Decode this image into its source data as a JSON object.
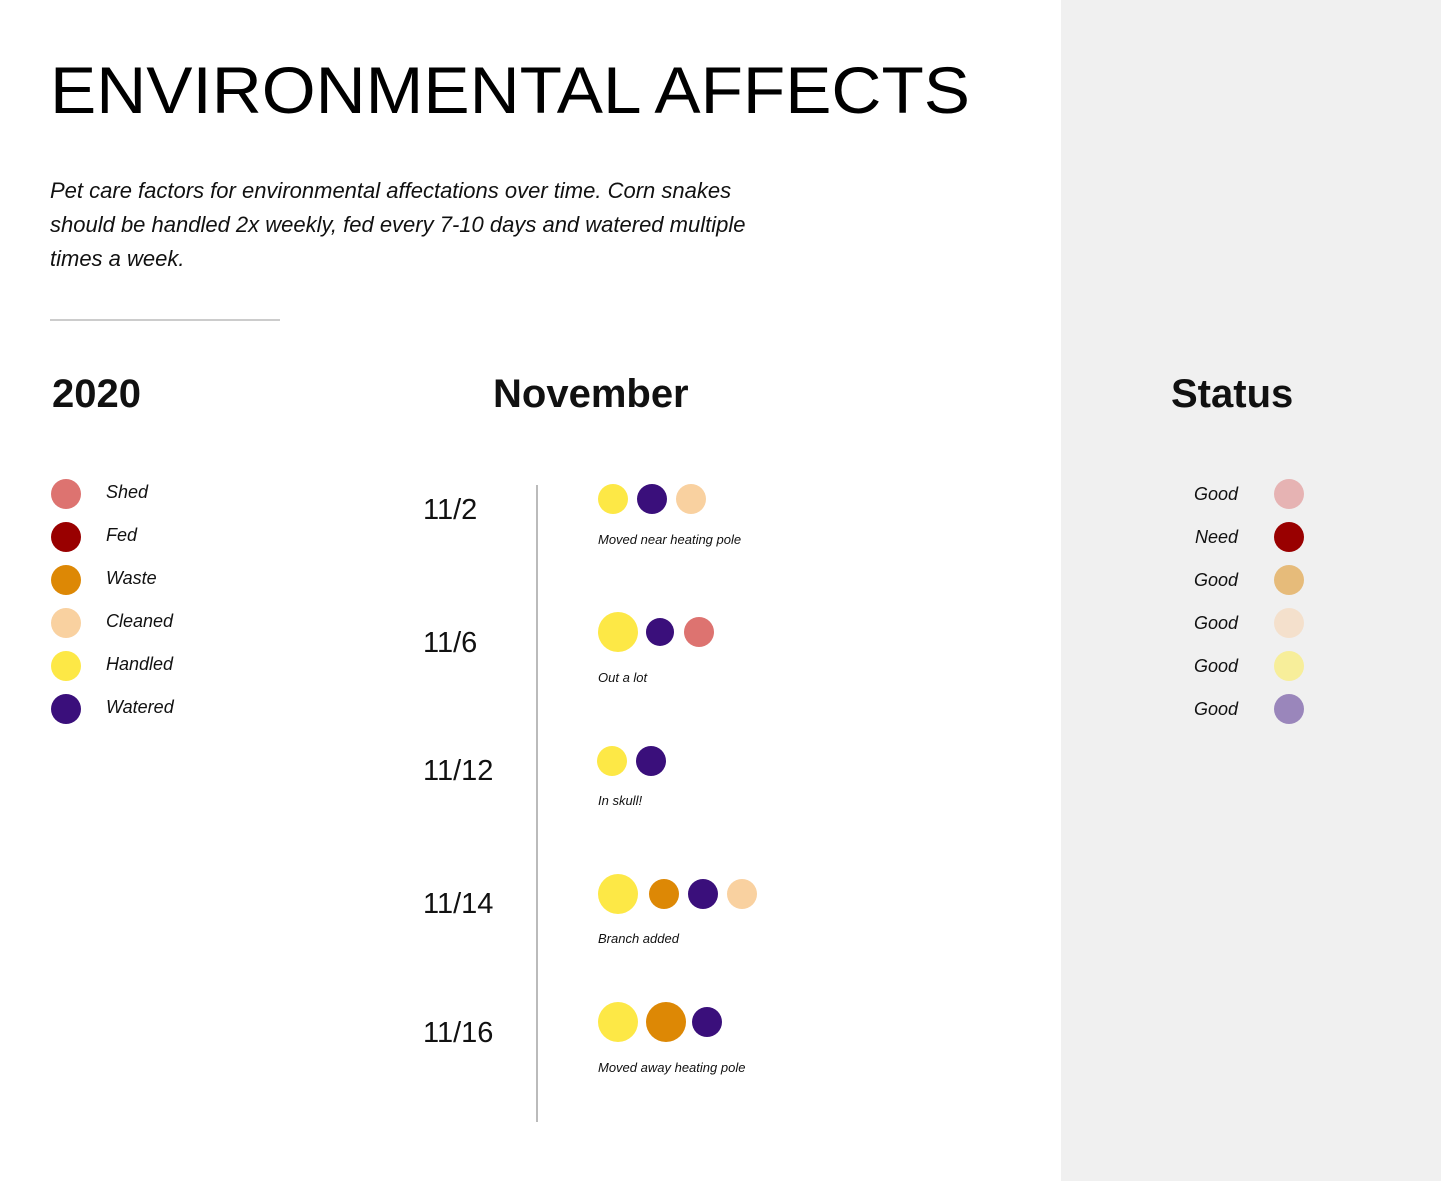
{
  "header": {
    "title": "ENVIRONMENTAL AFFECTS",
    "description": "Pet care factors for environmental affectations over time. Corn snakes should be handled 2x weekly, fed  every 7-10 days and watered multiple times a week."
  },
  "year": "2020",
  "month": "November",
  "status_heading": "Status",
  "legend": [
    "Shed",
    "Fed",
    "Waste",
    "Cleaned",
    "Handled",
    "Watered"
  ],
  "timeline": [
    {
      "date": "11/2",
      "note": "Moved near heating pole"
    },
    {
      "date": "11/6",
      "note": "Out a lot"
    },
    {
      "date": "11/12",
      "note": "In skull!"
    },
    {
      "date": "11/14",
      "note": "Branch added"
    },
    {
      "date": "11/16",
      "note": "Moved away heating pole"
    }
  ],
  "status": [
    "Good",
    "Need",
    "Good",
    "Good",
    "Good",
    "Good"
  ]
}
